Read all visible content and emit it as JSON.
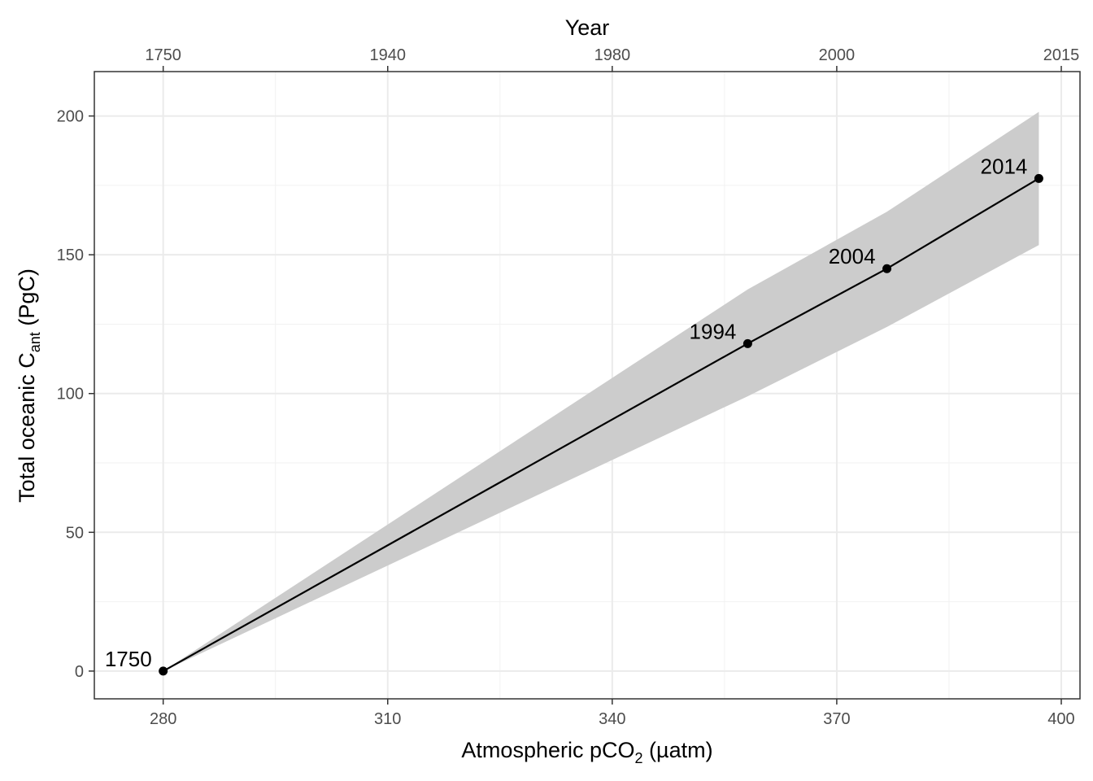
{
  "chart_data": {
    "type": "line",
    "xlabel": {
      "prefix": "Atmospheric pCO",
      "subscript": "2",
      "suffix": " (µatm)"
    },
    "ylabel": {
      "prefix": "Total oceanic C",
      "subscript": "ant",
      "suffix": " (PgC)"
    },
    "secondary_xlabel": "Year",
    "xlim": [
      270.8,
      402.5
    ],
    "ylim": [
      -10,
      216
    ],
    "x_ticks": [
      280,
      310,
      340,
      370,
      400
    ],
    "x_minor_ticks": [
      295,
      325,
      355,
      385
    ],
    "y_ticks": [
      0,
      50,
      100,
      150,
      200
    ],
    "y_minor_ticks": [
      25,
      75,
      125,
      175
    ],
    "secondary_x_ticks": [
      {
        "x": 280,
        "label": "1750"
      },
      {
        "x": 310,
        "label": "1940"
      },
      {
        "x": 340,
        "label": "1980"
      },
      {
        "x": 370,
        "label": "2000"
      },
      {
        "x": 400,
        "label": "2015"
      }
    ],
    "secondary_x_minor_ticks": [
      295,
      325,
      355,
      385
    ],
    "grid": true,
    "points": [
      {
        "x": 280,
        "y": 0,
        "label": "1750"
      },
      {
        "x": 358.1,
        "y": 118,
        "label": "1994"
      },
      {
        "x": 376.7,
        "y": 145,
        "label": "2004"
      },
      {
        "x": 397,
        "y": 177.5,
        "label": "2014"
      }
    ],
    "band": {
      "x": [
        280,
        358.1,
        376.7,
        397
      ],
      "lower": [
        0,
        99,
        124,
        153.5
      ],
      "upper": [
        0,
        137.5,
        165.5,
        201.5
      ]
    },
    "line_color": "#000000",
    "band_color": "#cccccc"
  }
}
